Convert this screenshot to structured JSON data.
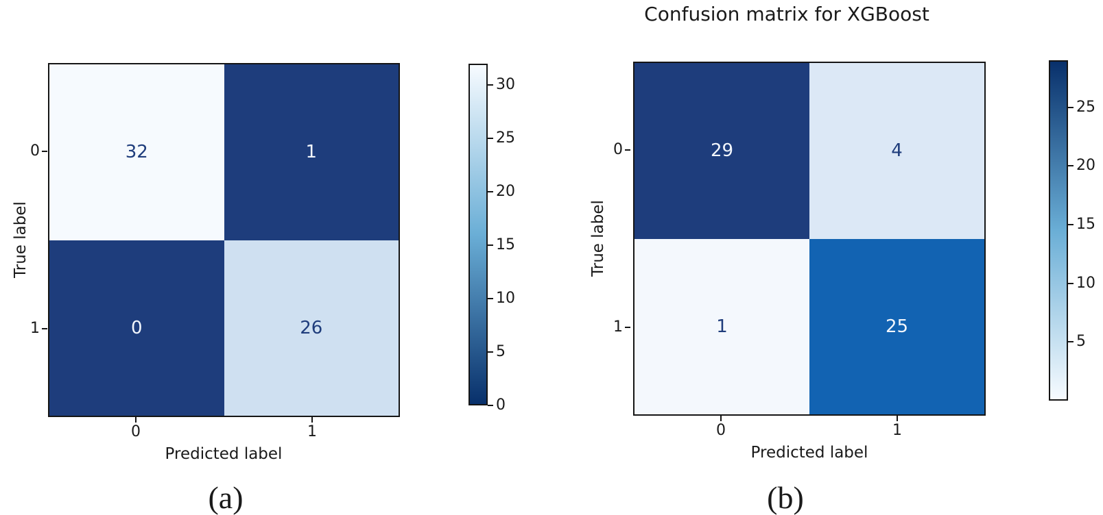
{
  "figure": {
    "panel_a_caption": "(a)",
    "panel_b_caption": "(b)"
  },
  "chart_data": [
    {
      "type": "heatmap",
      "panel": "a",
      "title": "",
      "xlabel": "Predicted label",
      "ylabel": "True label",
      "x_ticklabels": [
        "0",
        "1"
      ],
      "y_ticklabels": [
        "0",
        "1"
      ],
      "matrix": [
        [
          32,
          1
        ],
        [
          0,
          26
        ]
      ],
      "colormap": "Blues_r",
      "vmin": 0,
      "vmax": 32,
      "colorbar_ticks": [
        "30",
        "25",
        "20",
        "15",
        "10",
        "5",
        "0"
      ],
      "colorbar_top_color": "#f7fbff",
      "colorbar_mid_color": "#6aaed6",
      "colorbar_bottom_color": "#08306b",
      "cell_fill": [
        [
          "#f6fafe",
          "#1e3d7c"
        ],
        [
          "#1e3d7c",
          "#cfe0f1"
        ]
      ],
      "cell_text": [
        [
          "#1f3d7c",
          "#f2f6fc"
        ],
        [
          "#f2f6fc",
          "#1f3d7c"
        ]
      ]
    },
    {
      "type": "heatmap",
      "panel": "b",
      "title": "Confusion matrix for XGBoost",
      "xlabel": "Predicted label",
      "ylabel": "True label",
      "x_ticklabels": [
        "0",
        "1"
      ],
      "y_ticklabels": [
        "0",
        "1"
      ],
      "matrix": [
        [
          29,
          4
        ],
        [
          1,
          25
        ]
      ],
      "colormap": "Blues",
      "vmin": 0,
      "vmax": 29,
      "colorbar_ticks": [
        "25",
        "20",
        "15",
        "10",
        "5"
      ],
      "colorbar_top_color": "#08306b",
      "colorbar_mid_color": "#6aaed6",
      "colorbar_bottom_color": "#f7fbff",
      "cell_fill": [
        [
          "#1e3d7c",
          "#dce8f6"
        ],
        [
          "#f4f8fd",
          "#1263b2"
        ]
      ],
      "cell_text": [
        [
          "#f2f6fc",
          "#1f3d7c"
        ],
        [
          "#1f3d7c",
          "#f2f6fc"
        ]
      ]
    }
  ]
}
